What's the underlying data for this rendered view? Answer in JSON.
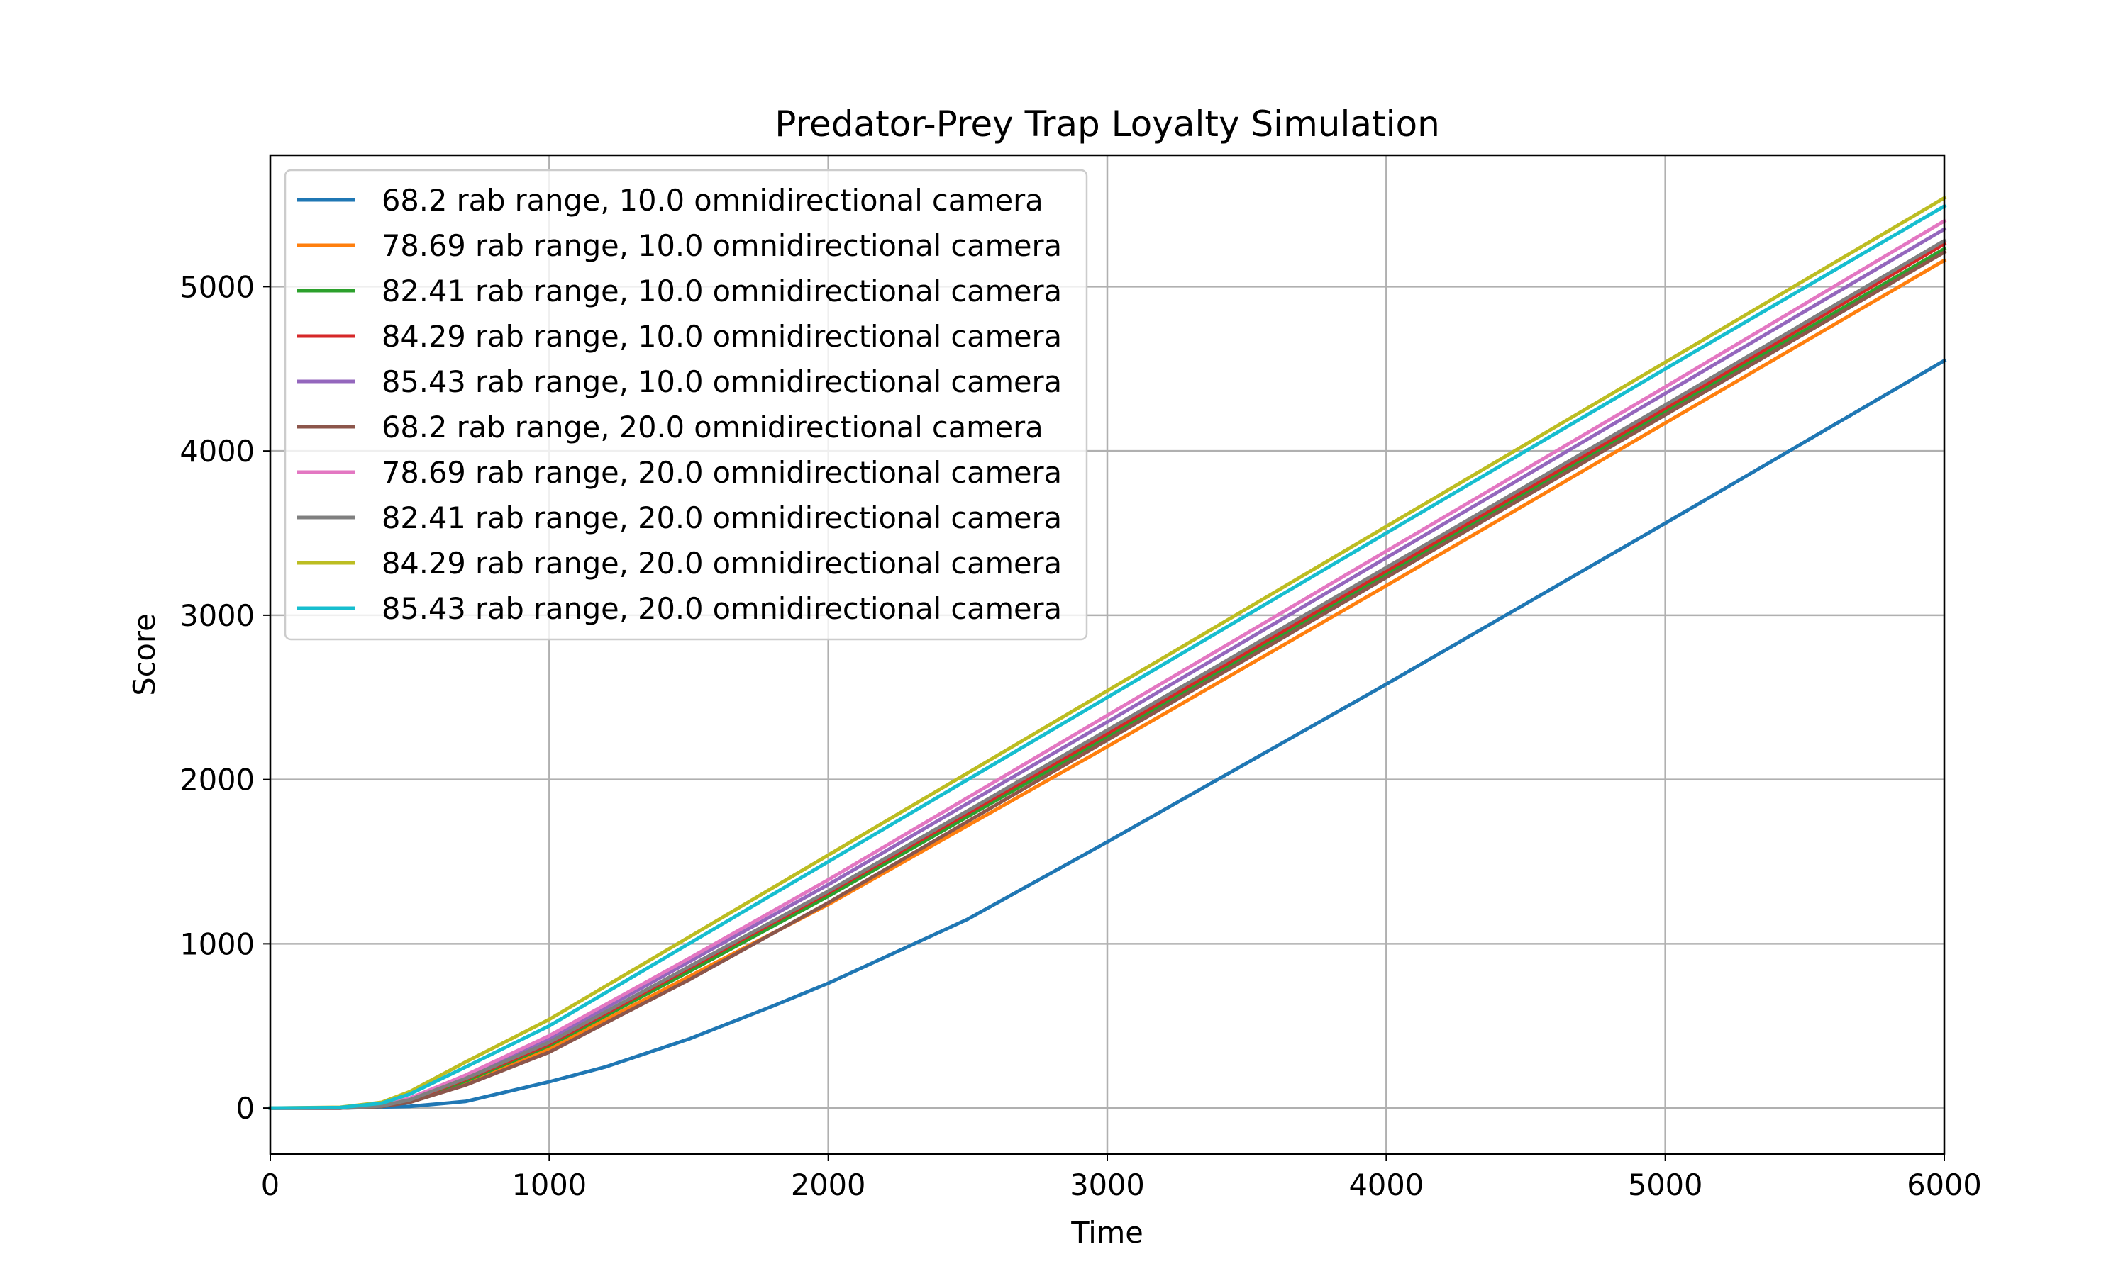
{
  "chart_data": {
    "type": "line",
    "title": "Predator-Prey Trap Loyalty Simulation",
    "xlabel": "Time",
    "ylabel": "Score",
    "xlim": [
      0,
      6000
    ],
    "ylim": [
      -280,
      5800
    ],
    "xticks": [
      0,
      1000,
      2000,
      3000,
      4000,
      5000,
      6000
    ],
    "yticks": [
      0,
      1000,
      2000,
      3000,
      4000,
      5000
    ],
    "grid": true,
    "legend_position": "upper-left",
    "series": [
      {
        "name": "68.2 rab range, 10.0 omnidirectional camera",
        "color": "#1f77b4",
        "x": [
          0,
          250,
          500,
          700,
          1000,
          1200,
          1500,
          1800,
          2000,
          2500,
          3000,
          4000,
          5000,
          6000
        ],
        "y": [
          0,
          0,
          10,
          40,
          160,
          250,
          420,
          620,
          760,
          1150,
          1620,
          2580,
          3560,
          4550
        ]
      },
      {
        "name": "78.69 rab range, 10.0 omnidirectional camera",
        "color": "#ff7f0e",
        "x": [
          0,
          250,
          400,
          500,
          700,
          1000,
          1500,
          2000,
          3000,
          4000,
          5000,
          6000
        ],
        "y": [
          0,
          0,
          10,
          40,
          150,
          360,
          800,
          1240,
          2200,
          3180,
          4170,
          5160
        ]
      },
      {
        "name": "82.41 rab range, 10.0 omnidirectional camera",
        "color": "#2ca02c",
        "x": [
          0,
          250,
          400,
          500,
          700,
          1000,
          1500,
          2000,
          3000,
          4000,
          5000,
          6000
        ],
        "y": [
          0,
          0,
          12,
          45,
          165,
          380,
          830,
          1290,
          2260,
          3250,
          4240,
          5230
        ]
      },
      {
        "name": "84.29 rab range, 10.0 omnidirectional camera",
        "color": "#d62728",
        "x": [
          0,
          250,
          400,
          500,
          700,
          1000,
          1500,
          2000,
          3000,
          4000,
          5000,
          6000
        ],
        "y": [
          0,
          0,
          12,
          48,
          175,
          390,
          850,
          1310,
          2280,
          3270,
          4260,
          5260
        ]
      },
      {
        "name": "85.43 rab range, 10.0 omnidirectional camera",
        "color": "#9467bd",
        "x": [
          0,
          250,
          400,
          500,
          700,
          1000,
          1500,
          2000,
          3000,
          4000,
          5000,
          6000
        ],
        "y": [
          0,
          0,
          14,
          55,
          190,
          420,
          890,
          1360,
          2350,
          3350,
          4350,
          5350
        ]
      },
      {
        "name": "68.2 rab range, 20.0 omnidirectional camera",
        "color": "#8c564b",
        "x": [
          0,
          250,
          400,
          500,
          700,
          1000,
          1500,
          2000,
          3000,
          4000,
          5000,
          6000
        ],
        "y": [
          0,
          0,
          10,
          35,
          140,
          340,
          780,
          1250,
          2240,
          3230,
          4220,
          5210
        ]
      },
      {
        "name": "78.69 rab range, 20.0 omnidirectional camera",
        "color": "#e377c2",
        "x": [
          0,
          250,
          400,
          500,
          700,
          1000,
          1500,
          2000,
          3000,
          4000,
          5000,
          6000
        ],
        "y": [
          0,
          0,
          15,
          60,
          200,
          440,
          910,
          1390,
          2390,
          3390,
          4390,
          5400
        ]
      },
      {
        "name": "82.41 rab range, 20.0 omnidirectional camera",
        "color": "#7f7f7f",
        "x": [
          0,
          250,
          400,
          500,
          700,
          1000,
          1500,
          2000,
          3000,
          4000,
          5000,
          6000
        ],
        "y": [
          0,
          0,
          13,
          50,
          180,
          400,
          860,
          1320,
          2300,
          3290,
          4280,
          5280
        ]
      },
      {
        "name": "84.29 rab range, 20.0 omnidirectional camera",
        "color": "#bcbd22",
        "x": [
          0,
          250,
          400,
          500,
          700,
          1000,
          1500,
          2000,
          3000,
          4000,
          5000,
          6000
        ],
        "y": [
          0,
          5,
          35,
          100,
          280,
          540,
          1040,
          1540,
          2540,
          3540,
          4540,
          5540
        ]
      },
      {
        "name": "85.43 rab range, 20.0 omnidirectional camera",
        "color": "#17becf",
        "x": [
          0,
          250,
          400,
          500,
          700,
          1000,
          1500,
          2000,
          3000,
          4000,
          5000,
          6000
        ],
        "y": [
          0,
          3,
          30,
          85,
          250,
          500,
          1000,
          1500,
          2500,
          3500,
          4500,
          5490
        ]
      }
    ]
  }
}
